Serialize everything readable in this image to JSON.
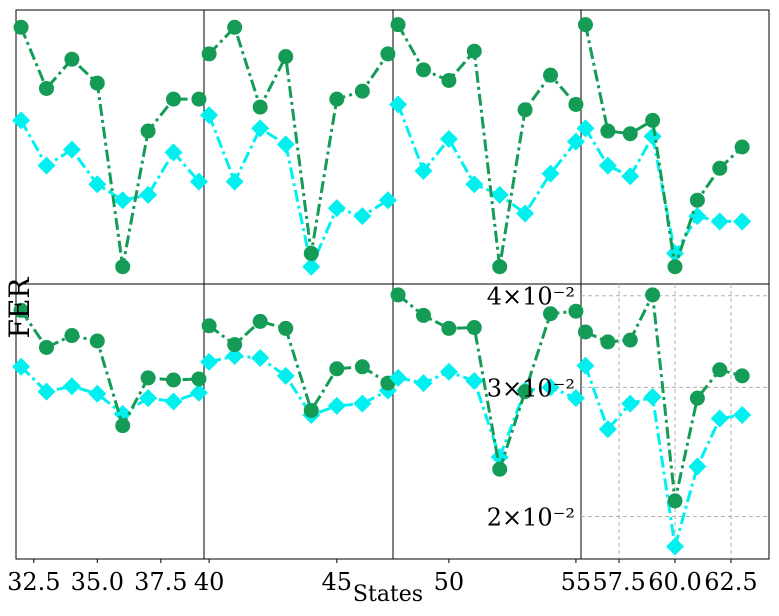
{
  "chart_data": {
    "type": "line",
    "xlabel": "States",
    "ylabel": "FER",
    "yscale": "log",
    "grid": "last panel only, dashed",
    "colors": {
      "dot": "#149c57",
      "diamond": "#00f0f0"
    },
    "ytick_labels": [
      "4×10⁻²",
      "3×10⁻²",
      "2×10⁻²"
    ],
    "ytick_values": [
      0.04,
      0.03,
      0.02
    ],
    "x_ticks": [
      [
        {
          "v": 32.5,
          "label": "32.5"
        },
        {
          "v": 35.0,
          "label": "35.0"
        },
        {
          "v": 37.5,
          "label": "37.5"
        }
      ],
      [
        {
          "v": 40,
          "label": "40"
        },
        {
          "v": 45,
          "label": "45"
        }
      ],
      [
        {
          "v": 50,
          "label": "50"
        },
        {
          "v": 55,
          "label": "55"
        }
      ],
      [
        {
          "v": 57.5,
          "label": "57.5"
        },
        {
          "v": 60.0,
          "label": "60.0"
        },
        {
          "v": 62.5,
          "label": "62.5"
        }
      ]
    ],
    "panels": [
      {
        "x": [
          32,
          33,
          34,
          35,
          36,
          37,
          38,
          39
        ],
        "dot": [
          0.0382,
          0.034,
          0.0353,
          0.0347,
          0.0266,
          0.0309,
          0.0307,
          0.0308
        ],
        "diamond": [
          0.032,
          0.0296,
          0.0301,
          0.0294,
          0.0276,
          0.029,
          0.0287,
          0.0295
        ],
        "xlim": [
          31.8,
          39.2
        ]
      },
      {
        "x": [
          40,
          41,
          42,
          43,
          44,
          45,
          46,
          47
        ],
        "dot": [
          0.0364,
          0.0343,
          0.0369,
          0.0361,
          0.0279,
          0.0318,
          0.032,
          0.0304
        ],
        "diamond": [
          0.0325,
          0.0331,
          0.0329,
          0.0311,
          0.0275,
          0.0283,
          0.0285,
          0.0297
        ],
        "xlim": [
          39.8,
          47.2
        ]
      },
      {
        "x": [
          48,
          49,
          50,
          51,
          52,
          53,
          54,
          55
        ],
        "dot": [
          0.0401,
          0.0376,
          0.0361,
          0.0362,
          0.0232,
          0.0296,
          0.0378,
          0.0381
        ],
        "diamond": [
          0.0309,
          0.0304,
          0.0315,
          0.0306,
          0.0241,
          0.0297,
          0.03,
          0.029
        ],
        "xlim": [
          47.8,
          55.2
        ]
      },
      {
        "x": [
          56,
          57,
          58,
          59,
          60,
          61,
          62,
          63
        ],
        "dot": [
          0.0357,
          0.0346,
          0.0348,
          0.0401,
          0.021,
          0.029,
          0.0317,
          0.0311
        ],
        "diamond": [
          0.0321,
          0.0263,
          0.0285,
          0.0291,
          0.0182,
          0.0234,
          0.0272,
          0.0275
        ],
        "xlim": [
          55.8,
          64.2
        ]
      }
    ],
    "top_panels": [
      {
        "dot": [
          0.95,
          0.72,
          0.83,
          0.74,
          0.05,
          0.56,
          0.68,
          0.68
        ],
        "diamond": [
          0.6,
          0.43,
          0.49,
          0.36,
          0.3,
          0.32,
          0.48,
          0.37
        ]
      },
      {
        "dot": [
          0.85,
          0.95,
          0.65,
          0.84,
          0.1,
          0.68,
          0.71,
          0.85
        ],
        "diamond": [
          0.62,
          0.37,
          0.57,
          0.51,
          0.05,
          0.27,
          0.24,
          0.3
        ]
      },
      {
        "dot": [
          0.96,
          0.79,
          0.75,
          0.86,
          0.05,
          0.64,
          0.77,
          0.66
        ],
        "diamond": [
          0.66,
          0.41,
          0.53,
          0.36,
          0.32,
          0.25,
          0.4,
          0.52
        ]
      },
      {
        "dot": [
          0.96,
          0.56,
          0.55,
          0.6,
          0.05,
          0.3,
          0.42,
          0.5
        ],
        "diamond": [
          0.57,
          0.43,
          0.39,
          0.54,
          0.1,
          0.24,
          0.22,
          0.22
        ]
      }
    ]
  }
}
